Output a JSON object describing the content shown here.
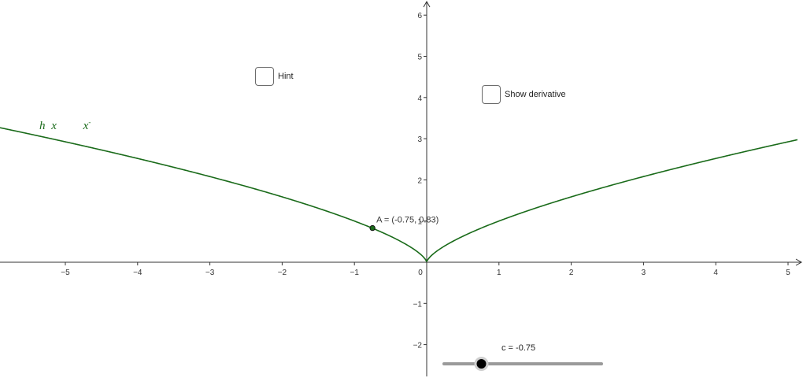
{
  "colors": {
    "curve": "#1a6b1a",
    "axis": "#333333",
    "slider_track": "#9a9a9a",
    "slider_knob": "#000000"
  },
  "graph": {
    "x_ticks": [
      "−5",
      "−4",
      "−3",
      "−2",
      "−1",
      "0",
      "1",
      "2",
      "3",
      "4",
      "5"
    ],
    "y_ticks": [
      "6",
      "5",
      "4",
      "3",
      "2",
      "1",
      "−1",
      "−2"
    ]
  },
  "controls": {
    "hint": {
      "label": "Hint",
      "checked": false,
      "icon": "checkbox"
    },
    "show_derivative": {
      "label": "Show derivative",
      "checked": false,
      "icon": "checkbox"
    }
  },
  "slider": {
    "caption": "c = -0.75",
    "value": -0.75,
    "min": -2,
    "max": 2
  },
  "function_label": {
    "name": "h",
    "var": "x",
    "rhs": "x"
  },
  "point": {
    "name": "A",
    "x": -0.75,
    "y": 0.83,
    "label": "A = (-0.75, 0.83)"
  }
}
